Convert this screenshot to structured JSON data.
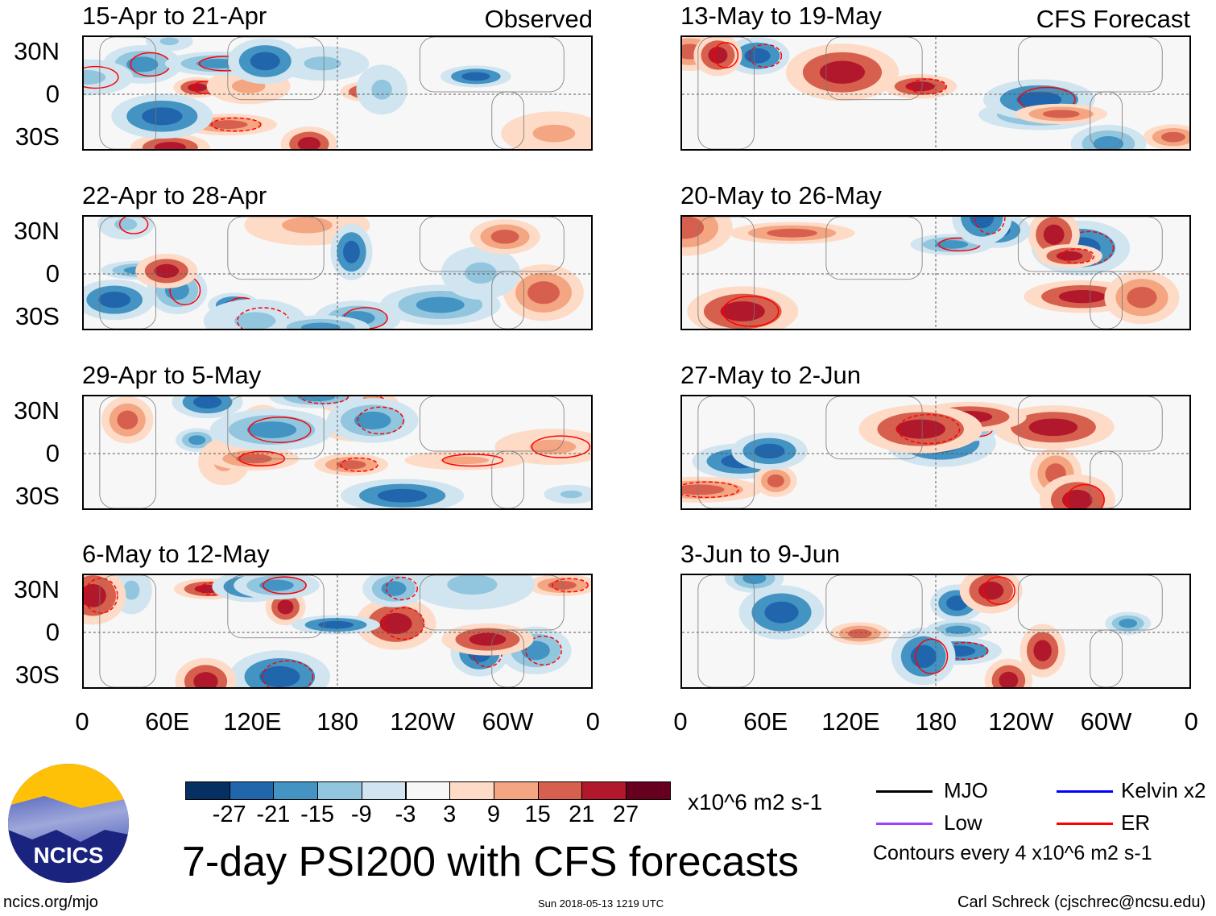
{
  "observed_label": "Observed",
  "forecast_label": "CFS Forecast",
  "observed_panels": [
    "15-Apr to 21-Apr",
    "22-Apr to 28-Apr",
    "29-Apr to 5-May",
    "6-May to 12-May"
  ],
  "forecast_panels": [
    "13-May to 19-May",
    "20-May to 26-May",
    "27-May to 2-Jun",
    "3-Jun to 9-Jun"
  ],
  "lat_labels": [
    "30N",
    "0",
    "30S"
  ],
  "lon_labels": [
    "0",
    "60E",
    "120E",
    "180",
    "120W",
    "60W",
    "0"
  ],
  "colorbar": {
    "colors": [
      "#053061",
      "#2166ac",
      "#4393c3",
      "#92c5de",
      "#d1e5f0",
      "#f7f7f7",
      "#fddbc7",
      "#f4a582",
      "#d6604d",
      "#b2182b",
      "#67001f"
    ],
    "labels": [
      "-27",
      "-21",
      "-15",
      "-9",
      "-3",
      "3",
      "9",
      "15",
      "21",
      "27"
    ],
    "units": "x10^6 m2 s-1"
  },
  "title": "7-day PSI200 with CFS forecasts",
  "legend": {
    "items": [
      {
        "label": "MJO",
        "color": "#000000"
      },
      {
        "label": "Kelvin x2",
        "color": "#0000ff"
      },
      {
        "label": "Low",
        "color": "#a040ff"
      },
      {
        "label": "ER",
        "color": "#ff0000"
      }
    ],
    "note": "Contours every 4 x10^6 m2 s-1"
  },
  "logo_text": "NCICS",
  "footer": {
    "url": "ncics.org/mjo",
    "timestamp": "Sun 2018-05-13 1219 UTC",
    "author": "Carl Schreck (cjschrec@ncsu.edu)"
  }
}
